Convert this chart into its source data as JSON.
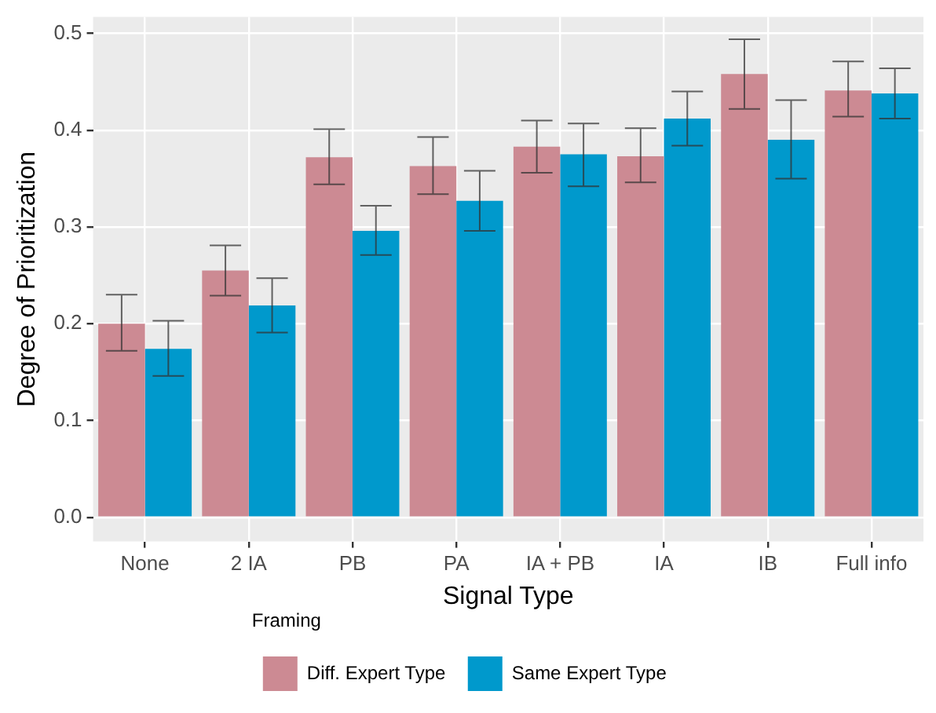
{
  "chart_data": {
    "type": "bar",
    "xlabel": "Signal Type",
    "ylabel": "Degree of Prioritization",
    "legend_title": "Framing",
    "categories": [
      "None",
      "2 IA",
      "PB",
      "PA",
      "IA + PB",
      "IA",
      "IB",
      "Full info"
    ],
    "series": [
      {
        "name": "Diff. Expert Type",
        "color": "#cc8a93",
        "values": [
          0.2,
          0.255,
          0.372,
          0.363,
          0.383,
          0.373,
          0.458,
          0.441
        ],
        "errors": [
          [
            0.172,
            0.23
          ],
          [
            0.229,
            0.281
          ],
          [
            0.344,
            0.401
          ],
          [
            0.334,
            0.393
          ],
          [
            0.356,
            0.41
          ],
          [
            0.346,
            0.402
          ],
          [
            0.422,
            0.494
          ],
          [
            0.414,
            0.471
          ]
        ]
      },
      {
        "name": "Same Expert Type",
        "color": "#0099cc",
        "values": [
          0.174,
          0.219,
          0.296,
          0.327,
          0.375,
          0.412,
          0.39,
          0.438
        ],
        "errors": [
          [
            0.146,
            0.203
          ],
          [
            0.191,
            0.247
          ],
          [
            0.271,
            0.322
          ],
          [
            0.296,
            0.358
          ],
          [
            0.342,
            0.407
          ],
          [
            0.384,
            0.44
          ],
          [
            0.35,
            0.431
          ],
          [
            0.412,
            0.464
          ]
        ]
      }
    ],
    "ylim": [
      -0.025,
      0.517
    ],
    "yticks": [
      {
        "value": 0,
        "label": "0.0"
      },
      {
        "value": 0.1,
        "label": "0.1"
      },
      {
        "value": 0.2,
        "label": "0.2"
      },
      {
        "value": 0.3,
        "label": "0.3"
      },
      {
        "value": 0.4,
        "label": "0.4"
      },
      {
        "value": 0.5,
        "label": "0.5"
      }
    ],
    "grid": true,
    "legend": "bottom"
  }
}
